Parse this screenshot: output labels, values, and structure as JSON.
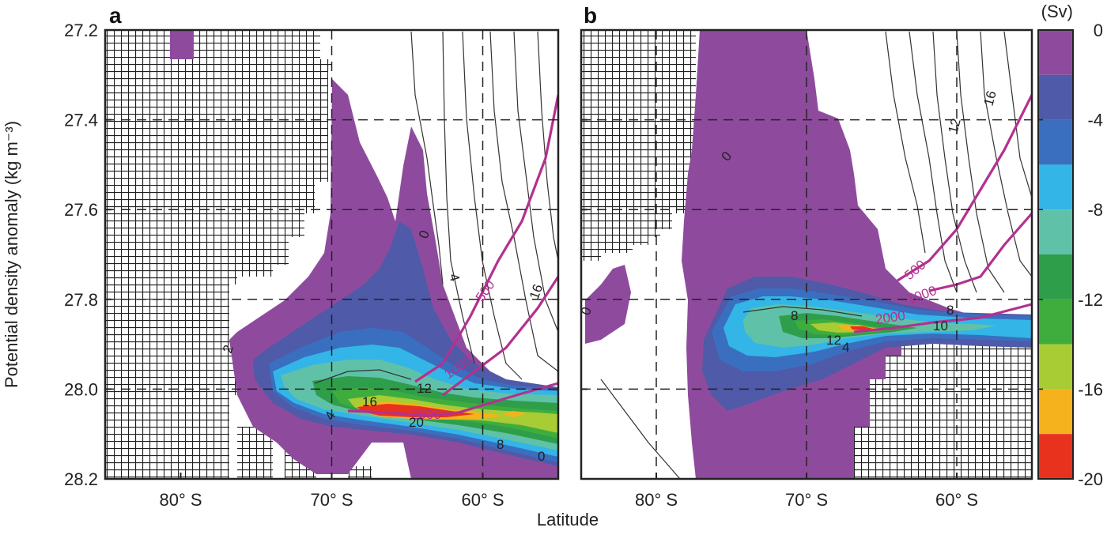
{
  "chart_data": [
    {
      "panel": "a",
      "type": "heatmap",
      "xlabel": "Latitude",
      "ylabel": "Potential density anomaly (kg m⁻³)",
      "x_ticks": [
        "80° S",
        "70° S",
        "60° S"
      ],
      "x_tick_values": [
        -80,
        -70,
        -60
      ],
      "xlim": [
        -85,
        -55
      ],
      "y_ticks": [
        "27.2",
        "27.4",
        "27.6",
        "27.8",
        "28.0",
        "28.2"
      ],
      "y_tick_values": [
        27.2,
        27.4,
        27.6,
        27.8,
        28.0,
        28.2
      ],
      "ylim": [
        28.2,
        27.2
      ],
      "grid": "dashed at 70° S, 60° S and 27.4, 27.6, 27.8, 28.0",
      "contour_labels": [
        "0",
        "4",
        "16",
        "500",
        "1000",
        "2000",
        "16",
        "20",
        "12",
        "4",
        "8",
        "0",
        "2"
      ],
      "core": {
        "lat": -66,
        "density": 28.05,
        "value": -20
      }
    },
    {
      "panel": "b",
      "type": "heatmap",
      "xlabel": "Latitude",
      "x_ticks": [
        "80° S",
        "70° S",
        "60° S"
      ],
      "x_tick_values": [
        -80,
        -70,
        -60
      ],
      "xlim": [
        -85,
        -55
      ],
      "ylim": [
        28.2,
        27.2
      ],
      "grid": "dashed at 80° S, 70° S, 60° S and 27.4, 27.6, 27.8, 28.0",
      "contour_labels": [
        "0",
        "12",
        "16",
        "500",
        "1000",
        "2000",
        "8",
        "12",
        "4",
        "8",
        "10",
        "0"
      ],
      "core": {
        "lat": -66,
        "density": 27.86,
        "value": -20
      }
    }
  ],
  "colorbar": {
    "unit": "(Sv)",
    "ticks": [
      "0",
      "-4",
      "-8",
      "-12",
      "-16",
      "-20"
    ],
    "tick_values": [
      0,
      -4,
      -8,
      -12,
      -16,
      -20
    ],
    "levels": [
      {
        "from": 0,
        "to": -2,
        "color": "#8e4b9e"
      },
      {
        "from": -2,
        "to": -4,
        "color": "#4f5aa8"
      },
      {
        "from": -4,
        "to": -6,
        "color": "#3a6fc0"
      },
      {
        "from": -6,
        "to": -8,
        "color": "#33b5e8"
      },
      {
        "from": -8,
        "to": -10,
        "color": "#5fc2a8"
      },
      {
        "from": -10,
        "to": -12,
        "color": "#2e9e4a"
      },
      {
        "from": -12,
        "to": -14,
        "color": "#3fad3e"
      },
      {
        "from": -14,
        "to": -16,
        "color": "#a7cc34"
      },
      {
        "from": -16,
        "to": -18,
        "color": "#f5b21c"
      },
      {
        "from": -18,
        "to": -20,
        "color": "#e8321e"
      }
    ]
  },
  "labels": {
    "panel_a": "a",
    "panel_b": "b",
    "x_title": "Latitude",
    "y_title": "Potential density anomaly (kg m⁻³)",
    "cbar_unit": "(Sv)"
  },
  "colors": {
    "land_mask": "#222222",
    "depth_contour": "#b3318f",
    "contour": "#333333"
  }
}
